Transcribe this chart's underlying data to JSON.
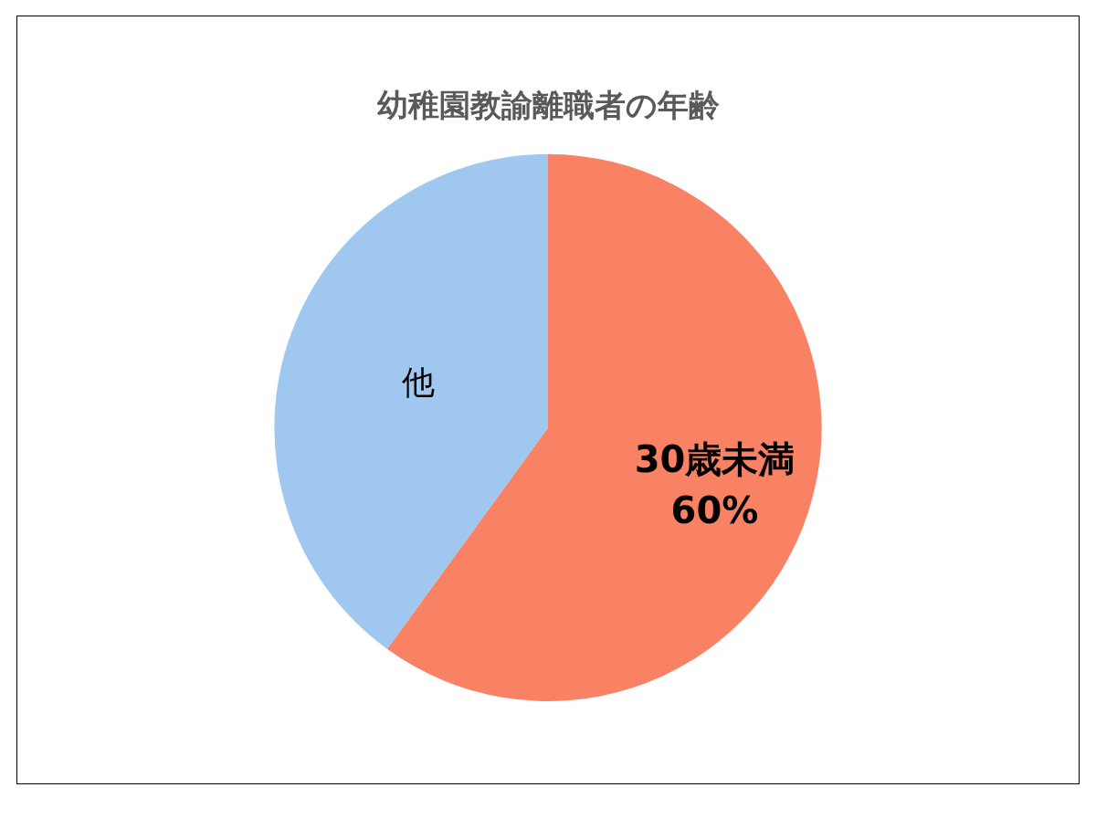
{
  "chart_data": {
    "type": "pie",
    "title": "幼稚園教諭離職者の年齢",
    "categories": [
      "30歳未満",
      "他"
    ],
    "values": [
      60,
      40
    ],
    "colors": [
      "#f98264",
      "#9fc7f0"
    ],
    "value_labels": [
      "60%",
      null
    ],
    "legend": false
  }
}
